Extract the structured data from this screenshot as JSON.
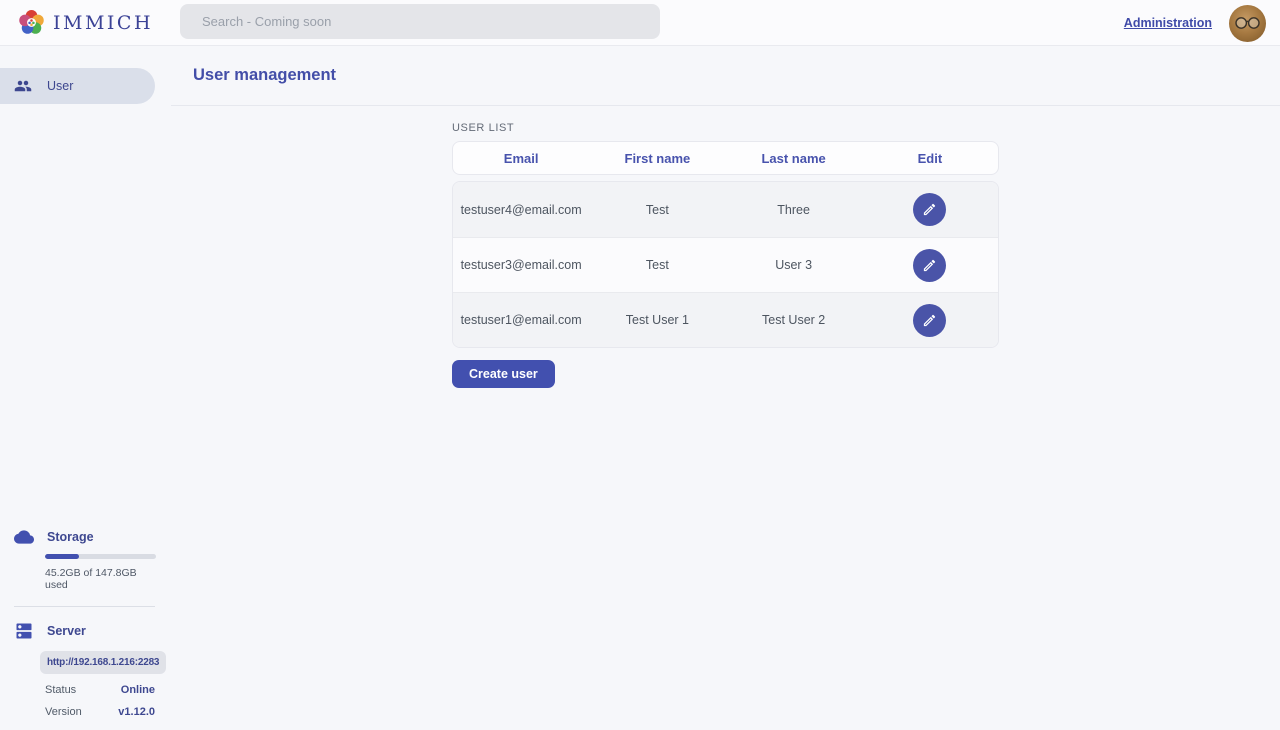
{
  "header": {
    "brand": "IMMICH",
    "search_placeholder": "Search - Coming soon",
    "admin_link": "Administration",
    "icons": {
      "logo": "immich-flower-icon",
      "avatar": "user-avatar-photo"
    }
  },
  "sidebar": {
    "items": [
      {
        "label": "User",
        "icon": "group-icon",
        "active": true
      }
    ]
  },
  "page": {
    "title": "User management"
  },
  "user_list": {
    "section_label": "USER LIST",
    "columns": {
      "email": "Email",
      "first_name": "First name",
      "last_name": "Last name",
      "edit": "Edit"
    },
    "rows": [
      {
        "email": "testuser4@email.com",
        "first_name": "Test",
        "last_name": "Three"
      },
      {
        "email": "testuser3@email.com",
        "first_name": "Test",
        "last_name": "User 3"
      },
      {
        "email": "testuser1@email.com",
        "first_name": "Test User 1",
        "last_name": "Test User 2"
      }
    ],
    "edit_icon": "pencil-icon",
    "create_button": "Create user"
  },
  "storage": {
    "icon": "cloud-icon",
    "title": "Storage",
    "usage_text": "45.2GB of 147.8GB used",
    "percent_used": 30.6
  },
  "server": {
    "icon": "dns-icon",
    "title": "Server",
    "url": "http://192.168.1.216:2283",
    "status_label": "Status",
    "status_value": "Online",
    "version_label": "Version",
    "version_value": "v1.12.0"
  },
  "colors": {
    "primary": "#4250af",
    "active_pill": "#dadfea",
    "status_online": "#3e4890",
    "logo_petals": [
      "#d93f34",
      "#f0a83a",
      "#4caf50",
      "#4262c7"
    ]
  }
}
